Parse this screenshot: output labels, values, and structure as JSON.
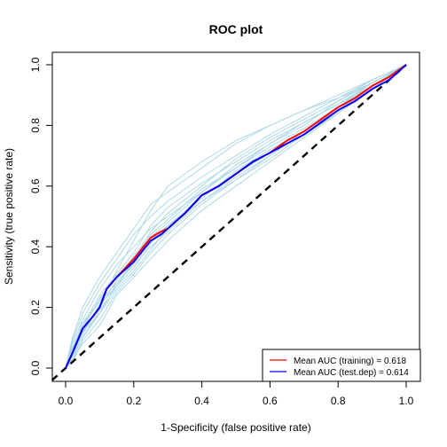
{
  "chart_data": {
    "type": "line",
    "title": "ROC plot",
    "xlabel": "1-Specificity (false positive rate)",
    "ylabel": "Sensitivity (true positive rate)",
    "xlim": [
      0,
      1
    ],
    "ylim": [
      0,
      1
    ],
    "xticks": [
      "0.0",
      "0.2",
      "0.4",
      "0.6",
      "0.8",
      "1.0"
    ],
    "yticks": [
      "0.0",
      "0.2",
      "0.4",
      "0.6",
      "0.8",
      "1.0"
    ],
    "grid": false,
    "legend_position": "bottom-right",
    "colors": {
      "training": "#FF0000",
      "test": "#0000FF",
      "replicates": "#ADD8E6",
      "reference": "#000000"
    },
    "legend": [
      {
        "label": "Mean AUC (training) = 0.618",
        "color": "#FF0000"
      },
      {
        "label": "Mean AUC (test.dep) = 0.614",
        "color": "#0000FF"
      }
    ],
    "series": [
      {
        "name": "Mean AUC (training) = 0.618",
        "style": "solid",
        "x": [
          0,
          0.02,
          0.05,
          0.08,
          0.1,
          0.12,
          0.15,
          0.2,
          0.25,
          0.28,
          0.3,
          0.35,
          0.4,
          0.45,
          0.5,
          0.55,
          0.6,
          0.65,
          0.7,
          0.75,
          0.8,
          0.85,
          0.9,
          0.95,
          1.0
        ],
        "y": [
          0,
          0.05,
          0.13,
          0.17,
          0.2,
          0.26,
          0.3,
          0.36,
          0.43,
          0.45,
          0.46,
          0.51,
          0.57,
          0.6,
          0.64,
          0.68,
          0.71,
          0.75,
          0.78,
          0.82,
          0.86,
          0.89,
          0.93,
          0.96,
          1.0
        ]
      },
      {
        "name": "Mean AUC (test.dep) = 0.614",
        "style": "solid",
        "x": [
          0,
          0.02,
          0.05,
          0.08,
          0.1,
          0.12,
          0.15,
          0.2,
          0.25,
          0.28,
          0.3,
          0.35,
          0.4,
          0.45,
          0.5,
          0.55,
          0.6,
          0.65,
          0.7,
          0.75,
          0.8,
          0.85,
          0.9,
          0.95,
          1.0
        ],
        "y": [
          0,
          0.05,
          0.13,
          0.17,
          0.2,
          0.26,
          0.3,
          0.35,
          0.42,
          0.44,
          0.46,
          0.51,
          0.57,
          0.6,
          0.64,
          0.68,
          0.71,
          0.74,
          0.77,
          0.81,
          0.85,
          0.88,
          0.92,
          0.95,
          1.0
        ]
      }
    ],
    "replicates": [
      {
        "x": [
          0,
          0.02,
          0.05,
          0.1,
          0.15,
          0.2,
          0.25,
          0.3,
          0.4,
          0.5,
          0.6,
          0.7,
          0.8,
          0.9,
          1.0
        ],
        "y": [
          0,
          0.1,
          0.2,
          0.3,
          0.38,
          0.46,
          0.54,
          0.58,
          0.66,
          0.74,
          0.8,
          0.85,
          0.9,
          0.95,
          1.0
        ]
      },
      {
        "x": [
          0,
          0.02,
          0.05,
          0.1,
          0.15,
          0.2,
          0.25,
          0.3,
          0.4,
          0.5,
          0.6,
          0.7,
          0.8,
          0.9,
          1.0
        ],
        "y": [
          0,
          0.06,
          0.15,
          0.22,
          0.32,
          0.42,
          0.52,
          0.6,
          0.68,
          0.75,
          0.8,
          0.85,
          0.89,
          0.94,
          1.0
        ]
      },
      {
        "x": [
          0,
          0.02,
          0.05,
          0.1,
          0.15,
          0.2,
          0.25,
          0.3,
          0.4,
          0.5,
          0.6,
          0.7,
          0.8,
          0.9,
          1.0
        ],
        "y": [
          0,
          0.04,
          0.12,
          0.18,
          0.28,
          0.34,
          0.4,
          0.45,
          0.55,
          0.62,
          0.7,
          0.78,
          0.86,
          0.93,
          1.0
        ]
      },
      {
        "x": [
          0,
          0.02,
          0.05,
          0.1,
          0.15,
          0.2,
          0.25,
          0.3,
          0.4,
          0.5,
          0.6,
          0.7,
          0.8,
          0.9,
          1.0
        ],
        "y": [
          0,
          0.03,
          0.08,
          0.14,
          0.24,
          0.3,
          0.36,
          0.42,
          0.52,
          0.6,
          0.68,
          0.76,
          0.84,
          0.92,
          1.0
        ]
      },
      {
        "x": [
          0,
          0.02,
          0.05,
          0.1,
          0.15,
          0.2,
          0.25,
          0.3,
          0.4,
          0.5,
          0.6,
          0.7,
          0.8,
          0.9,
          1.0
        ],
        "y": [
          0,
          0.08,
          0.16,
          0.26,
          0.34,
          0.4,
          0.46,
          0.5,
          0.58,
          0.66,
          0.74,
          0.8,
          0.88,
          0.95,
          1.0
        ]
      },
      {
        "x": [
          0,
          0.02,
          0.05,
          0.1,
          0.15,
          0.2,
          0.25,
          0.3,
          0.4,
          0.5,
          0.6,
          0.7,
          0.8,
          0.9,
          1.0
        ],
        "y": [
          0,
          0.05,
          0.11,
          0.21,
          0.27,
          0.33,
          0.41,
          0.47,
          0.56,
          0.65,
          0.72,
          0.78,
          0.85,
          0.93,
          1.0
        ]
      },
      {
        "x": [
          0,
          0.02,
          0.05,
          0.1,
          0.15,
          0.2,
          0.25,
          0.3,
          0.4,
          0.5,
          0.6,
          0.7,
          0.8,
          0.9,
          1.0
        ],
        "y": [
          0,
          0.07,
          0.14,
          0.24,
          0.31,
          0.38,
          0.47,
          0.53,
          0.61,
          0.68,
          0.75,
          0.81,
          0.87,
          0.94,
          1.0
        ]
      },
      {
        "x": [
          0,
          0.02,
          0.05,
          0.1,
          0.15,
          0.2,
          0.25,
          0.3,
          0.4,
          0.5,
          0.6,
          0.7,
          0.8,
          0.9,
          1.0
        ],
        "y": [
          0,
          0.02,
          0.09,
          0.16,
          0.25,
          0.31,
          0.38,
          0.44,
          0.54,
          0.62,
          0.69,
          0.77,
          0.85,
          0.92,
          1.0
        ]
      },
      {
        "x": [
          0,
          0.02,
          0.05,
          0.1,
          0.15,
          0.2,
          0.25,
          0.3,
          0.4,
          0.5,
          0.6,
          0.7,
          0.8,
          0.9,
          1.0
        ],
        "y": [
          0,
          0.06,
          0.12,
          0.2,
          0.29,
          0.37,
          0.44,
          0.49,
          0.59,
          0.66,
          0.73,
          0.79,
          0.86,
          0.94,
          1.0
        ]
      },
      {
        "x": [
          0,
          0.02,
          0.05,
          0.1,
          0.15,
          0.2,
          0.25,
          0.3,
          0.4,
          0.5,
          0.6,
          0.7,
          0.8,
          0.9,
          1.0
        ],
        "y": [
          0,
          0.09,
          0.18,
          0.28,
          0.36,
          0.44,
          0.5,
          0.55,
          0.63,
          0.7,
          0.77,
          0.83,
          0.89,
          0.95,
          1.0
        ]
      },
      {
        "x": [
          0,
          0.02,
          0.05,
          0.1,
          0.15,
          0.2,
          0.25,
          0.3,
          0.4,
          0.5,
          0.6,
          0.7,
          0.8,
          0.9,
          1.0
        ],
        "y": [
          0,
          0.04,
          0.1,
          0.18,
          0.26,
          0.32,
          0.39,
          0.46,
          0.57,
          0.64,
          0.71,
          0.77,
          0.84,
          0.92,
          1.0
        ]
      },
      {
        "x": [
          0,
          0.02,
          0.05,
          0.1,
          0.15,
          0.2,
          0.25,
          0.3,
          0.4,
          0.5,
          0.6,
          0.7,
          0.8,
          0.9,
          1.0
        ],
        "y": [
          0,
          0.05,
          0.13,
          0.23,
          0.3,
          0.36,
          0.43,
          0.48,
          0.58,
          0.67,
          0.74,
          0.81,
          0.87,
          0.93,
          1.0
        ]
      },
      {
        "x": [
          0,
          0.02,
          0.05,
          0.1,
          0.15,
          0.2,
          0.25,
          0.3,
          0.4,
          0.5,
          0.6,
          0.7,
          0.8,
          0.9,
          1.0
        ],
        "y": [
          0,
          0.03,
          0.1,
          0.19,
          0.27,
          0.35,
          0.42,
          0.47,
          0.55,
          0.63,
          0.7,
          0.78,
          0.85,
          0.93,
          1.0
        ]
      },
      {
        "x": [
          0,
          0.02,
          0.05,
          0.1,
          0.15,
          0.2,
          0.25,
          0.3,
          0.4,
          0.5,
          0.6,
          0.7,
          0.8,
          0.9,
          1.0
        ],
        "y": [
          0,
          0.06,
          0.14,
          0.22,
          0.28,
          0.35,
          0.45,
          0.51,
          0.6,
          0.69,
          0.76,
          0.82,
          0.88,
          0.94,
          1.0
        ]
      }
    ],
    "reference_line": {
      "x": [
        0,
        1
      ],
      "y": [
        0,
        1
      ],
      "style": "dashed"
    }
  }
}
